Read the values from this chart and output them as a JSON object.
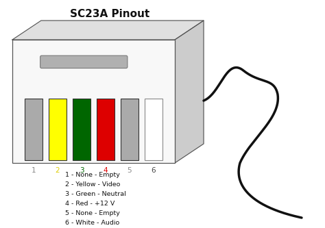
{
  "title": "SC23A Pinout",
  "background_color": "#ffffff",
  "pins": [
    {
      "label": "1",
      "color": "#aaaaaa",
      "label_color": "#888888"
    },
    {
      "label": "2",
      "color": "#ffff00",
      "label_color": "#ddcc00"
    },
    {
      "label": "3",
      "color": "#006600",
      "label_color": "#006600"
    },
    {
      "label": "4",
      "color": "#dd0000",
      "label_color": "#dd0000"
    },
    {
      "label": "5",
      "color": "#aaaaaa",
      "label_color": "#888888"
    },
    {
      "label": "6",
      "color": "#ffffff",
      "label_color": "#444444"
    }
  ],
  "legend_lines": [
    "1 - None - Empty",
    "2 - Yellow - Video",
    "3 - Green - Neutral",
    "4 - Red - +12 V",
    "5 - None - Empty",
    "6 - White - Audio"
  ]
}
